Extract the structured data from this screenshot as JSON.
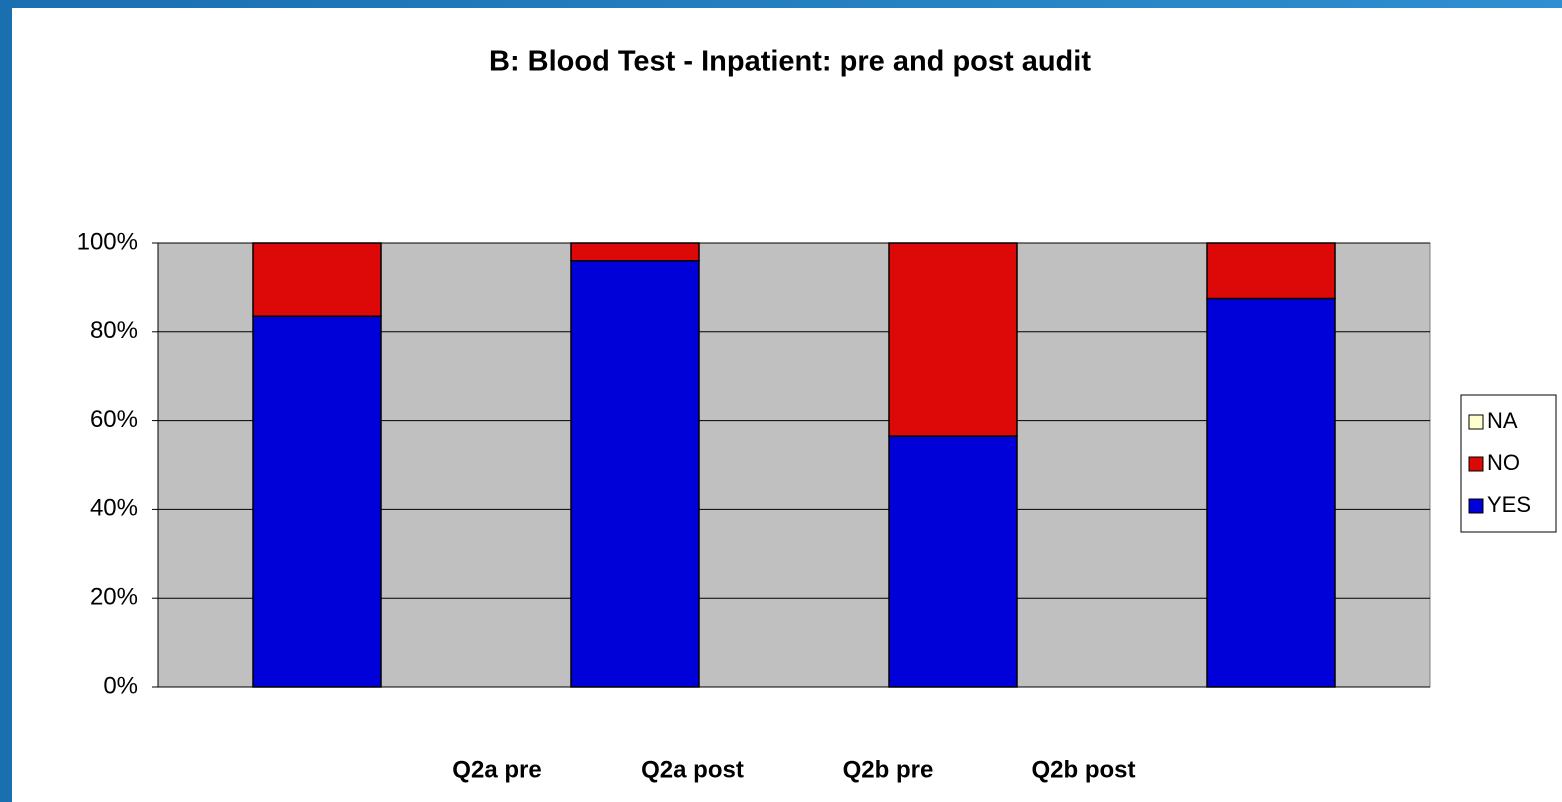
{
  "chart_data": {
    "type": "stacked_bar",
    "title": "B: Blood Test - Inpatient: pre and post audit",
    "categories": [
      "Q2a pre",
      "Q2a post",
      "Q2b pre",
      "Q2b post"
    ],
    "series": [
      {
        "name": "YES",
        "color": "#0000d8",
        "values": [
          83.5,
          96,
          56.5,
          87.5
        ]
      },
      {
        "name": "NO",
        "color": "#dd0808",
        "values": [
          16.5,
          4,
          43.5,
          12.5
        ]
      },
      {
        "name": "NA",
        "color": "#ffffcc",
        "values": [
          0,
          0,
          0,
          0
        ]
      }
    ],
    "ylim": [
      0,
      100
    ],
    "yticks": [
      {
        "value": 0,
        "label": "0%"
      },
      {
        "value": 20,
        "label": "20%"
      },
      {
        "value": 40,
        "label": "40%"
      },
      {
        "value": 60,
        "label": "60%"
      },
      {
        "value": 80,
        "label": "80%"
      },
      {
        "value": 100,
        "label": "100%"
      }
    ],
    "grid": true,
    "legend": "right"
  }
}
